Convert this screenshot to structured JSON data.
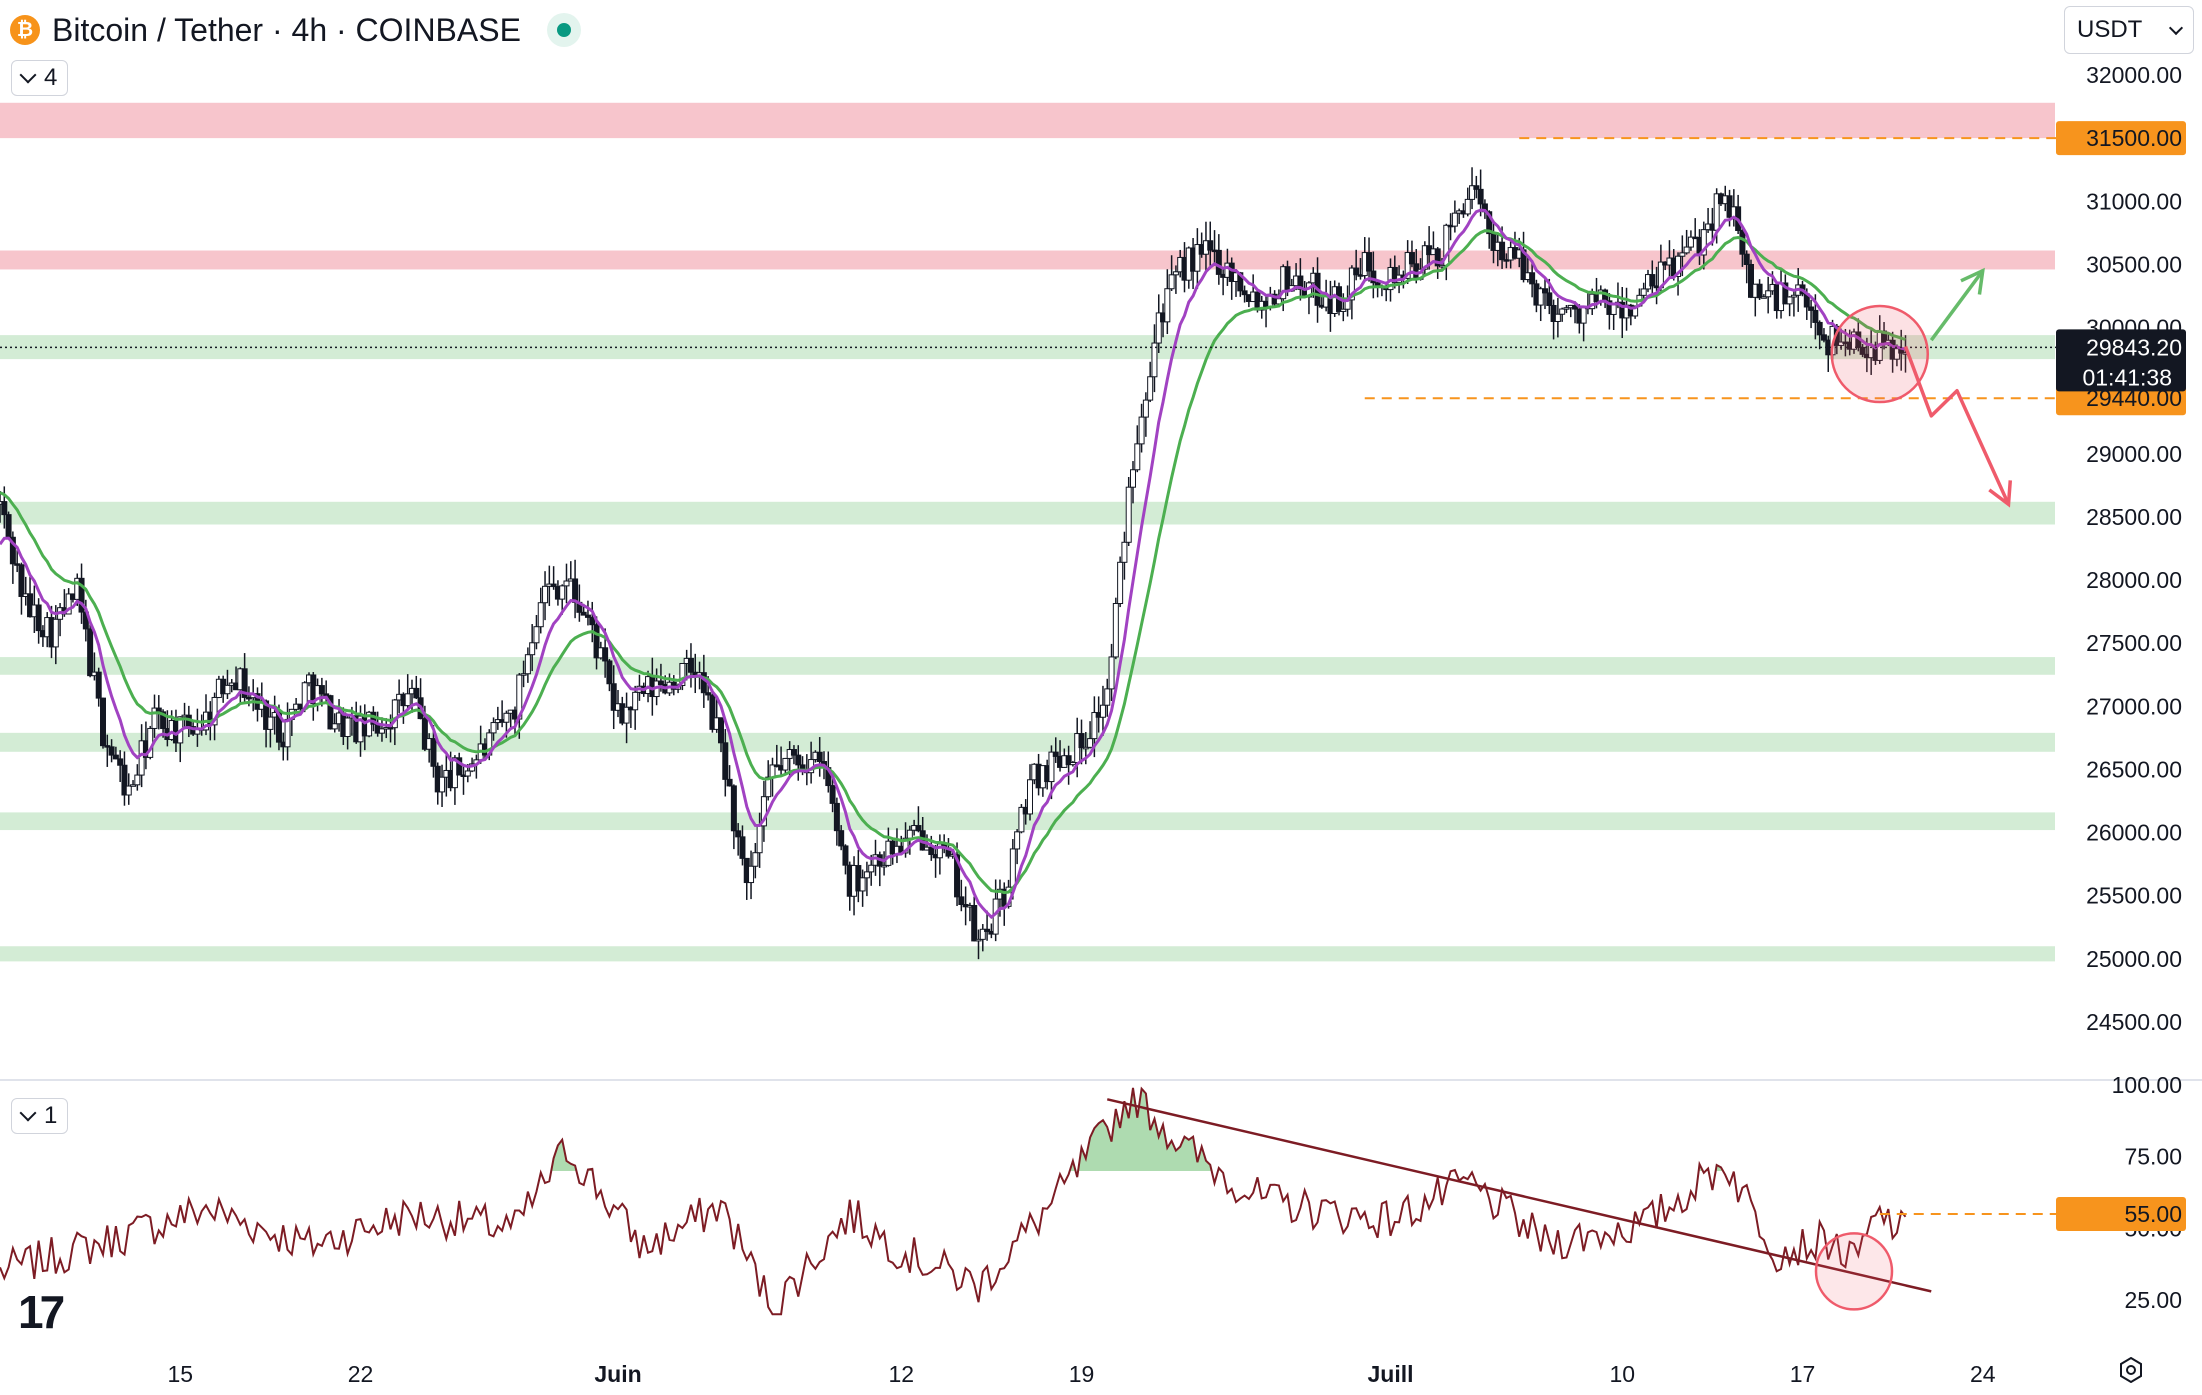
{
  "header": {
    "title": "Bitcoin / Tether · 4h · COINBASE",
    "indicator_count_main": "4",
    "indicator_count_rsi": "1",
    "currency": "USDT"
  },
  "colors": {
    "candle": "#131722",
    "ema_fast": "#a142c2",
    "ema_slow": "#4caf50",
    "resistance_zone": "#f7c5cc",
    "support_zone": "#d3ecd5",
    "level_line": "#f7941d",
    "rsi_line": "#7d1c24",
    "arrow_up": "#66bb6a",
    "arrow_down": "#ef5b6b"
  },
  "chart_data": [
    {
      "type": "candlestick",
      "symbol": "Bitcoin / Tether",
      "timeframe": "4h",
      "exchange": "COINBASE",
      "y_axis_ticks": [
        "32000.00",
        "31000.00",
        "30500.00",
        "30000.00",
        "29000.00",
        "28500.00",
        "28000.00",
        "27500.00",
        "27000.00",
        "26500.00",
        "26000.00",
        "25500.00",
        "25000.00",
        "24500.00"
      ],
      "ylim": [
        24250,
        32300
      ],
      "x_axis_ticks": [
        "15",
        "22",
        "Juin",
        "12",
        "19",
        "Juill",
        "10",
        "17",
        "24"
      ],
      "x_dates": [
        "2023-05-08",
        "2023-07-27"
      ],
      "price_path": [
        [
          "2023-05-08",
          28600
        ],
        [
          "2023-05-09",
          27800
        ],
        [
          "2023-05-10",
          27600
        ],
        [
          "2023-05-11",
          27900
        ],
        [
          "2023-05-12",
          26800
        ],
        [
          "2023-05-13",
          26300
        ],
        [
          "2023-05-14",
          26900
        ],
        [
          "2023-05-15",
          26800
        ],
        [
          "2023-05-16",
          26900
        ],
        [
          "2023-05-17",
          27300
        ],
        [
          "2023-05-18",
          27000
        ],
        [
          "2023-05-19",
          26800
        ],
        [
          "2023-05-20",
          27200
        ],
        [
          "2023-05-21",
          26900
        ],
        [
          "2023-05-22",
          26800
        ],
        [
          "2023-05-23",
          26900
        ],
        [
          "2023-05-24",
          27100
        ],
        [
          "2023-05-25",
          26400
        ],
        [
          "2023-05-26",
          26500
        ],
        [
          "2023-05-27",
          26700
        ],
        [
          "2023-05-28",
          27000
        ],
        [
          "2023-05-29",
          27900
        ],
        [
          "2023-05-30",
          28000
        ],
        [
          "2023-05-31",
          27600
        ],
        [
          "2023-06-01",
          26900
        ],
        [
          "2023-06-02",
          27100
        ],
        [
          "2023-06-03",
          27200
        ],
        [
          "2023-06-04",
          27300
        ],
        [
          "2023-06-05",
          26700
        ],
        [
          "2023-06-06",
          25500
        ],
        [
          "2023-06-07",
          26500
        ],
        [
          "2023-06-08",
          26600
        ],
        [
          "2023-06-09",
          26500
        ],
        [
          "2023-06-10",
          25600
        ],
        [
          "2023-06-11",
          25800
        ],
        [
          "2023-06-12",
          25900
        ],
        [
          "2023-06-13",
          26000
        ],
        [
          "2023-06-14",
          25700
        ],
        [
          "2023-06-15",
          25100
        ],
        [
          "2023-06-16",
          25500
        ],
        [
          "2023-06-17",
          26400
        ],
        [
          "2023-06-18",
          26600
        ],
        [
          "2023-06-19",
          26700
        ],
        [
          "2023-06-20",
          27100
        ],
        [
          "2023-06-21",
          29000
        ],
        [
          "2023-06-22",
          30100
        ],
        [
          "2023-06-23",
          30500
        ],
        [
          "2023-06-24",
          30600
        ],
        [
          "2023-06-25",
          30400
        ],
        [
          "2023-06-26",
          30200
        ],
        [
          "2023-06-27",
          30400
        ],
        [
          "2023-06-28",
          30300
        ],
        [
          "2023-06-29",
          30200
        ],
        [
          "2023-06-30",
          30500
        ],
        [
          "2023-07-01",
          30400
        ],
        [
          "2023-07-02",
          30500
        ],
        [
          "2023-07-03",
          30600
        ],
        [
          "2023-07-04",
          31100
        ],
        [
          "2023-07-05",
          30700
        ],
        [
          "2023-07-06",
          30500
        ],
        [
          "2023-07-07",
          30200
        ],
        [
          "2023-07-08",
          30100
        ],
        [
          "2023-07-09",
          30200
        ],
        [
          "2023-07-10",
          30100
        ],
        [
          "2023-07-11",
          30300
        ],
        [
          "2023-07-12",
          30500
        ],
        [
          "2023-07-13",
          30700
        ],
        [
          "2023-07-14",
          31100
        ],
        [
          "2023-07-15",
          30300
        ],
        [
          "2023-07-16",
          30250
        ],
        [
          "2023-07-17",
          30200
        ],
        [
          "2023-07-18",
          29900
        ],
        [
          "2023-07-19",
          29900
        ],
        [
          "2023-07-20",
          29850
        ],
        [
          "2023-07-21",
          29843
        ]
      ],
      "ema_fast_start": 28200,
      "ema_slow_start": 28700,
      "zones": [
        {
          "kind": "resistance",
          "from": 31500,
          "to": 31780
        },
        {
          "kind": "resistance",
          "from": 30460,
          "to": 30610
        },
        {
          "kind": "support",
          "from": 29750,
          "to": 29940
        },
        {
          "kind": "support",
          "from": 28440,
          "to": 28620
        },
        {
          "kind": "support",
          "from": 27250,
          "to": 27390
        },
        {
          "kind": "support",
          "from": 26640,
          "to": 26790
        },
        {
          "kind": "support",
          "from": 26020,
          "to": 26160
        },
        {
          "kind": "support",
          "from": 24980,
          "to": 25100
        }
      ],
      "levels": [
        {
          "value": 31500,
          "label": "31500.00",
          "from": "2023-07-06"
        },
        {
          "value": 29440,
          "label": "29440.00",
          "from": "2023-06-30"
        }
      ],
      "last_price": {
        "value": 29843.2,
        "label": "29843.20",
        "countdown": "01:41:38"
      },
      "scenario_arrows": {
        "up": [
          [
            "2023-07-22",
            29900
          ],
          [
            "2023-07-24",
            30450
          ]
        ],
        "down": [
          [
            "2023-07-21",
            29850
          ],
          [
            "2023-07-22",
            29300
          ],
          [
            "2023-07-23",
            29500
          ],
          [
            "2023-07-25",
            28600
          ]
        ]
      },
      "highlight_circle": {
        "date": "2023-07-20",
        "value": 29790
      }
    },
    {
      "type": "line",
      "name": "RSI",
      "y_axis_ticks": [
        "100.00",
        "75.00",
        "50.00",
        "25.00"
      ],
      "ylim": [
        20,
        100
      ],
      "rsi_path": [
        [
          "2023-05-08",
          35
        ],
        [
          "2023-05-12",
          45
        ],
        [
          "2023-05-16",
          57
        ],
        [
          "2023-05-20",
          44
        ],
        [
          "2023-05-24",
          55
        ],
        [
          "2023-05-28",
          50
        ],
        [
          "2023-05-30",
          78
        ],
        [
          "2023-06-02",
          43
        ],
        [
          "2023-06-05",
          58
        ],
        [
          "2023-06-07",
          22
        ],
        [
          "2023-06-10",
          55
        ],
        [
          "2023-06-12",
          42
        ],
        [
          "2023-06-15",
          30
        ],
        [
          "2023-06-18",
          60
        ],
        [
          "2023-06-21",
          97
        ],
        [
          "2023-06-23",
          78
        ],
        [
          "2023-06-26",
          60
        ],
        [
          "2023-06-29",
          55
        ],
        [
          "2023-07-01",
          53
        ],
        [
          "2023-07-04",
          66
        ],
        [
          "2023-07-07",
          45
        ],
        [
          "2023-07-09",
          48
        ],
        [
          "2023-07-11",
          52
        ],
        [
          "2023-07-14",
          73
        ],
        [
          "2023-07-16",
          42
        ],
        [
          "2023-07-18",
          46
        ],
        [
          "2023-07-19",
          38
        ],
        [
          "2023-07-20",
          55
        ],
        [
          "2023-07-21",
          48
        ]
      ],
      "trendline": [
        [
          "2023-06-20",
          95
        ],
        [
          "2023-07-22",
          28
        ]
      ],
      "level": {
        "value": 55,
        "label": "55.00",
        "from": "2023-07-20"
      },
      "highlight_circle": {
        "date": "2023-07-19",
        "value": 35
      }
    }
  ]
}
